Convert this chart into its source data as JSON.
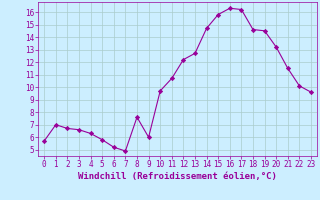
{
  "x": [
    0,
    1,
    2,
    3,
    4,
    5,
    6,
    7,
    8,
    9,
    10,
    11,
    12,
    13,
    14,
    15,
    16,
    17,
    18,
    19,
    20,
    21,
    22,
    23
  ],
  "y": [
    5.7,
    7.0,
    6.7,
    6.6,
    6.3,
    5.8,
    5.2,
    4.9,
    7.6,
    6.0,
    9.7,
    10.7,
    12.2,
    12.7,
    14.7,
    15.8,
    16.3,
    16.2,
    14.6,
    14.5,
    13.2,
    11.5,
    10.1,
    9.6
  ],
  "line_color": "#990099",
  "marker": "D",
  "marker_size": 2.2,
  "bg_color": "#cceeff",
  "grid_color": "#aacccc",
  "axis_label_color": "#990099",
  "tick_color": "#990099",
  "xlabel": "Windchill (Refroidissement éolien,°C)",
  "xlim": [
    -0.5,
    23.5
  ],
  "ylim": [
    4.5,
    16.8
  ],
  "yticks": [
    5,
    6,
    7,
    8,
    9,
    10,
    11,
    12,
    13,
    14,
    15,
    16
  ],
  "xticks": [
    0,
    1,
    2,
    3,
    4,
    5,
    6,
    7,
    8,
    9,
    10,
    11,
    12,
    13,
    14,
    15,
    16,
    17,
    18,
    19,
    20,
    21,
    22,
    23
  ],
  "tick_fontsize": 5.5,
  "axis_fontsize": 6.5
}
